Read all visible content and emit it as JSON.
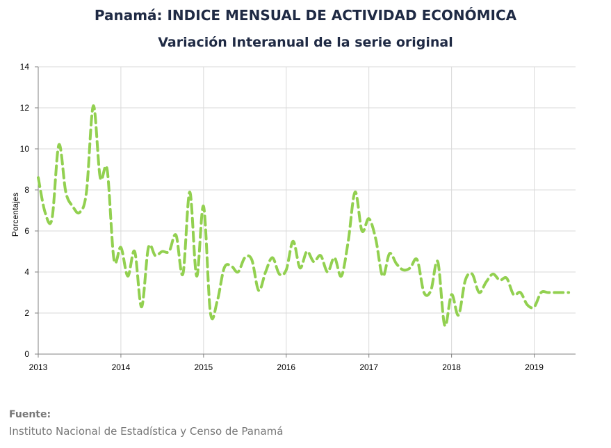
{
  "title": "Panamá: INDICE MENSUAL DE ACTIVIDAD ECONÓMICA",
  "subtitle": "Variación Interanual de la serie original",
  "source": {
    "heading": "Fuente:",
    "text": "Instituto Nacional de Estadística y Censo de Panamá"
  },
  "chart_data": {
    "type": "line",
    "title": "Panamá: INDICE MENSUAL DE ACTIVIDAD ECONÓMICA",
    "subtitle": "Variación Interanual de la serie original",
    "xlabel": "",
    "ylabel": "Porcentajes",
    "ylim": [
      0,
      14
    ],
    "yticks": [
      0,
      2,
      4,
      6,
      8,
      10,
      12,
      14
    ],
    "xlim": [
      "2013-01",
      "2019-07"
    ],
    "xticks": [
      "2013",
      "2014",
      "2015",
      "2016",
      "2017",
      "2018",
      "2019"
    ],
    "grid": true,
    "line_color": "#92d050",
    "line_style": "dashed",
    "series": [
      {
        "x": [
          "2013-01",
          "2013-02",
          "2013-03",
          "2013-04",
          "2013-05",
          "2013-06",
          "2013-07",
          "2013-08",
          "2013-09",
          "2013-10",
          "2013-11",
          "2013-12",
          "2014-01",
          "2014-02",
          "2014-03",
          "2014-04",
          "2014-05",
          "2014-06",
          "2014-07",
          "2014-08",
          "2014-09",
          "2014-10",
          "2014-11",
          "2014-12",
          "2015-01",
          "2015-02",
          "2015-03",
          "2015-04",
          "2015-05",
          "2015-06",
          "2015-07",
          "2015-08",
          "2015-09",
          "2015-10",
          "2015-11",
          "2015-12",
          "2016-01",
          "2016-02",
          "2016-03",
          "2016-04",
          "2016-05",
          "2016-06",
          "2016-07",
          "2016-08",
          "2016-09",
          "2016-10",
          "2016-11",
          "2016-12",
          "2017-01",
          "2017-02",
          "2017-03",
          "2017-04",
          "2017-05",
          "2017-06",
          "2017-07",
          "2017-08",
          "2017-09",
          "2017-10",
          "2017-11",
          "2017-12",
          "2018-01",
          "2018-02",
          "2018-03",
          "2018-04",
          "2018-05",
          "2018-06",
          "2018-07",
          "2018-08",
          "2018-09",
          "2018-10",
          "2018-11",
          "2018-12",
          "2019-01",
          "2019-02",
          "2019-03",
          "2019-04",
          "2019-05",
          "2019-06"
        ],
        "values": [
          8.6,
          6.9,
          6.6,
          10.2,
          7.9,
          7.2,
          6.9,
          7.9,
          12.1,
          8.6,
          9.0,
          4.6,
          5.2,
          3.8,
          5.0,
          2.3,
          5.2,
          4.8,
          5.0,
          5.0,
          5.8,
          3.9,
          7.9,
          3.8,
          7.2,
          2.0,
          2.6,
          4.2,
          4.3,
          4.0,
          4.7,
          4.6,
          3.1,
          4.0,
          4.7,
          3.9,
          4.1,
          5.5,
          4.2,
          5.0,
          4.5,
          4.8,
          4.0,
          4.7,
          3.8,
          5.5,
          7.9,
          6.0,
          6.6,
          5.6,
          3.8,
          4.9,
          4.4,
          4.1,
          4.2,
          4.6,
          3.0,
          3.1,
          4.5,
          1.4,
          2.9,
          1.9,
          3.6,
          3.9,
          3.0,
          3.5,
          3.9,
          3.6,
          3.7,
          2.9,
          3.0,
          2.4,
          2.3,
          3.0,
          3.0,
          3.0,
          3.0,
          3.0
        ]
      }
    ]
  }
}
